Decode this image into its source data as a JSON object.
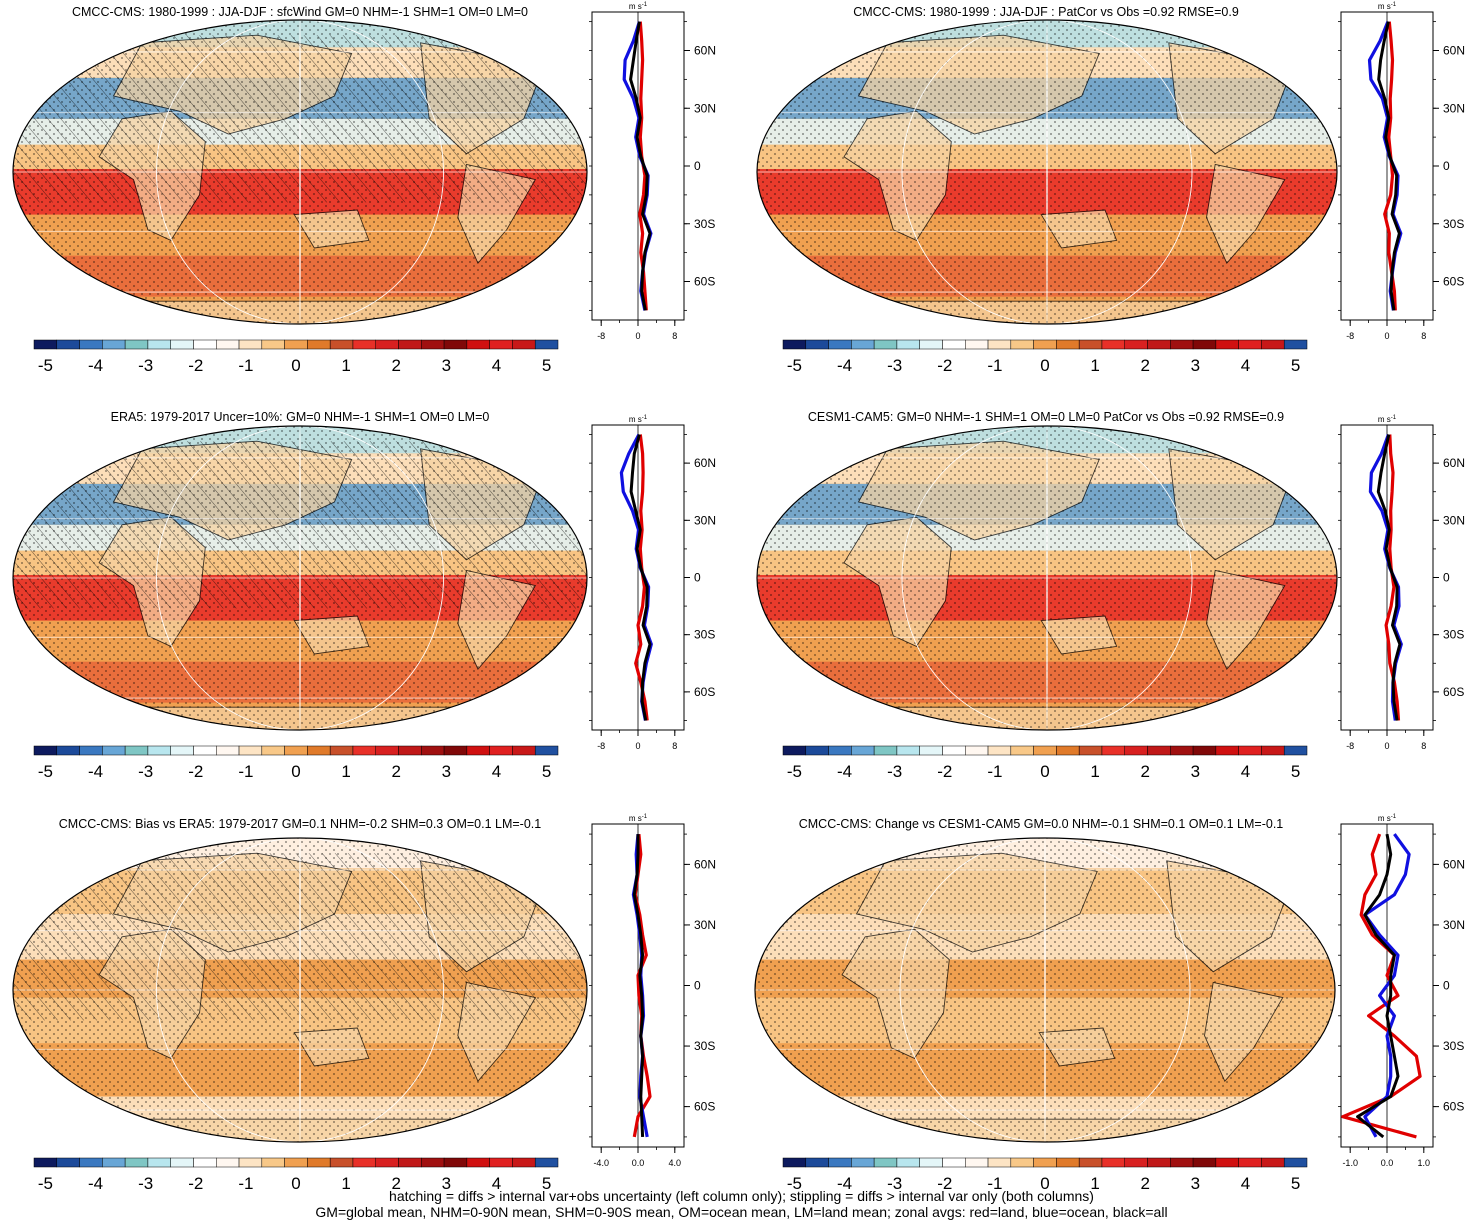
{
  "colors": {
    "scale": [
      "#0d1a5e",
      "#1c4a9a",
      "#3a78c0",
      "#68a6d6",
      "#7fc6c4",
      "#b8e6ee",
      "#e4f6f8",
      "#ffffff",
      "#fff7f0",
      "#fde4c4",
      "#f8c888",
      "#f0a050",
      "#e07a2a",
      "#c8502a",
      "#e83028",
      "#d82020",
      "#c01818",
      "#a01010",
      "#800808",
      "#d01010",
      "#e02020",
      "#c81818",
      "#2050a0"
    ],
    "zonal_land": "#e00000",
    "zonal_ocean": "#1010e0",
    "zonal_all": "#000000",
    "ocean_base": "#f0a050",
    "land_base": "#f6d2a2"
  },
  "colorbar": {
    "labels": [
      "-5",
      "-4",
      "-3",
      "-2",
      "-1",
      "0",
      "1",
      "2",
      "3",
      "4",
      "5"
    ]
  },
  "panels": [
    {
      "id": "p1",
      "title": "CMCC-CMS: 1980-1999 : JJA-DJF : sfcWind GM=0 NHM=-1 SHM=1 OM=0 LM=0",
      "lat_labels": [
        "60N",
        "30N",
        "0",
        "30S",
        "60S"
      ],
      "zonal_units": "m s",
      "zonal_units_exp": "-1",
      "zonal_xticks": [
        "-8",
        "0",
        "8"
      ],
      "zonal_xlim": [
        -10,
        10
      ],
      "hatched": true,
      "style": "bands"
    },
    {
      "id": "p2",
      "title": "CMCC-CMS: 1980-1999 : JJA-DJF : PatCor vs Obs =0.92 RMSE=0.9",
      "lat_labels": [
        "60N",
        "30N",
        "0",
        "30S",
        "60S"
      ],
      "zonal_units": "m s",
      "zonal_units_exp": "-1",
      "zonal_xticks": [
        "-8",
        "0",
        "8"
      ],
      "zonal_xlim": [
        -10,
        10
      ],
      "hatched": false,
      "style": "bands"
    },
    {
      "id": "p3",
      "title": "ERA5: 1979-2017 Uncer=10%: GM=0 NHM=-1 SHM=1 OM=0 LM=0",
      "lat_labels": [
        "60N",
        "30N",
        "0",
        "30S",
        "60S"
      ],
      "zonal_units": "m s",
      "zonal_units_exp": "-1",
      "zonal_xticks": [
        "-8",
        "0",
        "8"
      ],
      "zonal_xlim": [
        -10,
        10
      ],
      "hatched": true,
      "style": "bands"
    },
    {
      "id": "p4",
      "title": "CESM1-CAM5: GM=0 NHM=-1 SHM=1 OM=0 LM=0 PatCor vs Obs =0.92 RMSE=0.9",
      "lat_labels": [
        "60N",
        "30N",
        "0",
        "30S",
        "60S"
      ],
      "zonal_units": "m s",
      "zonal_units_exp": "-1",
      "zonal_xticks": [
        "-8",
        "0",
        "8"
      ],
      "zonal_xlim": [
        -10,
        10
      ],
      "hatched": false,
      "style": "bands"
    },
    {
      "id": "p5",
      "title": "CMCC-CMS: Bias vs ERA5: 1979-2017 GM=0.1 NHM=-0.2 SHM=0.3 OM=0.1 LM=-0.1",
      "lat_labels": [
        "60N",
        "30N",
        "0",
        "30S",
        "60S"
      ],
      "zonal_units": "m s",
      "zonal_units_exp": "-1",
      "zonal_xticks": [
        "-4.0",
        "0.0",
        "4.0"
      ],
      "zonal_xlim": [
        -5,
        5
      ],
      "hatched": true,
      "style": "bias"
    },
    {
      "id": "p6",
      "title": "CMCC-CMS: Change vs CESM1-CAM5 GM=0.0 NHM=-0.1 SHM=0.1 OM=0.1 LM=-0.1",
      "lat_labels": [
        "60N",
        "30N",
        "0",
        "30S",
        "60S"
      ],
      "zonal_units": "m s",
      "zonal_units_exp": "-1",
      "zonal_xticks": [
        "-1.0",
        "0.0",
        "1.0"
      ],
      "zonal_xlim": [
        -1.25,
        1.25
      ],
      "hatched": false,
      "style": "bias"
    }
  ],
  "footer": {
    "line1": "hatching = diffs > internal var+obs uncertainty (left column only); stippling = diffs > internal var only (both columns)",
    "line2": "GM=global mean, NHM=0-90N mean, SHM=0-90S mean, OM=ocean mean, LM=land mean; zonal avgs: red=land, blue=ocean, black=all"
  },
  "chart_data": [
    {
      "type": "line",
      "panel": "p1",
      "title": "CMCC-CMS: 1980-1999 : JJA-DJF : sfcWind GM=0 NHM=-1 SHM=1 OM=0 LM=0",
      "ylabel": "m s-1",
      "ylim": [
        -80,
        80
      ],
      "y": [
        75,
        65,
        55,
        45,
        35,
        25,
        15,
        5,
        -5,
        -15,
        -25,
        -35,
        -45,
        -55,
        -65,
        -75
      ],
      "series": [
        {
          "name": "red=land",
          "values": [
            0.5,
            0.8,
            1.0,
            0.8,
            0.6,
            0.8,
            0.5,
            0.8,
            1.5,
            1.2,
            0.4,
            1.0,
            0.6,
            1.2,
            1.5,
            1.8
          ]
        },
        {
          "name": "blue=ocean",
          "values": [
            0.3,
            -1.0,
            -2.8,
            -3.0,
            -1.0,
            0.2,
            -0.5,
            0.4,
            2.2,
            2.0,
            1.2,
            2.8,
            1.6,
            1.0,
            0.6,
            1.5
          ]
        },
        {
          "name": "black=all",
          "values": [
            0.3,
            -0.4,
            -1.0,
            -1.6,
            -0.4,
            0.5,
            -0.2,
            0.6,
            2.0,
            1.8,
            1.0,
            2.6,
            1.5,
            1.0,
            0.8,
            1.6
          ]
        }
      ]
    },
    {
      "type": "line",
      "panel": "p2",
      "title": "CMCC-CMS: 1980-1999 : JJA-DJF : PatCor vs Obs =0.92 RMSE=0.9",
      "ylabel": "m s-1",
      "ylim": [
        -80,
        80
      ],
      "y": [
        75,
        65,
        55,
        45,
        35,
        25,
        15,
        5,
        -5,
        -15,
        -25,
        -35,
        -45,
        -55,
        -65,
        -75
      ],
      "series": [
        {
          "name": "red=land",
          "values": [
            0.5,
            0.9,
            1.2,
            1.0,
            0.7,
            0.8,
            0.4,
            0.8,
            1.2,
            0.8,
            -0.5,
            0.5,
            0.4,
            1.0,
            1.6,
            1.8
          ]
        },
        {
          "name": "blue=ocean",
          "values": [
            0.2,
            -1.5,
            -3.8,
            -3.5,
            -1.0,
            0.1,
            -0.6,
            0.5,
            2.4,
            2.2,
            1.3,
            3.0,
            1.8,
            1.2,
            0.7,
            1.4
          ]
        },
        {
          "name": "black=all",
          "values": [
            0.3,
            -0.6,
            -1.4,
            -1.8,
            -0.5,
            0.4,
            -0.3,
            0.6,
            2.1,
            1.9,
            1.1,
            2.7,
            1.6,
            1.1,
            0.9,
            1.5
          ]
        }
      ]
    },
    {
      "type": "line",
      "panel": "p3",
      "title": "ERA5: 1979-2017 Uncer=10%: GM=0 NHM=-1 SHM=1 OM=0 LM=0",
      "ylabel": "m s-1",
      "ylim": [
        -80,
        80
      ],
      "y": [
        75,
        65,
        55,
        45,
        35,
        25,
        15,
        5,
        -5,
        -15,
        -25,
        -35,
        -45,
        -55,
        -65,
        -75
      ],
      "series": [
        {
          "name": "red=land",
          "values": [
            0.5,
            1.0,
            1.1,
            1.0,
            0.6,
            0.9,
            0.5,
            0.8,
            1.4,
            1.0,
            0.0,
            0.6,
            -0.5,
            0.6,
            1.5,
            2.0
          ]
        },
        {
          "name": "blue=ocean",
          "values": [
            0.2,
            -2.0,
            -3.6,
            -3.2,
            -1.2,
            0.1,
            -0.4,
            0.5,
            2.3,
            2.1,
            1.4,
            2.9,
            1.8,
            1.1,
            0.8,
            1.6
          ]
        },
        {
          "name": "black=all",
          "values": [
            0.3,
            -0.8,
            -1.2,
            -1.5,
            -0.5,
            0.5,
            -0.2,
            0.6,
            2.0,
            1.9,
            1.1,
            2.6,
            1.5,
            1.0,
            0.9,
            1.7
          ]
        }
      ]
    },
    {
      "type": "line",
      "panel": "p4",
      "title": "CESM1-CAM5: GM=0 NHM=-1 SHM=1 OM=0 LM=0 PatCor vs Obs =0.92 RMSE=0.9",
      "ylabel": "m s-1",
      "ylim": [
        -80,
        80
      ],
      "y": [
        75,
        65,
        55,
        45,
        35,
        25,
        15,
        5,
        -5,
        -15,
        -25,
        -35,
        -45,
        -55,
        -65,
        -75
      ],
      "series": [
        {
          "name": "red=land",
          "values": [
            0.6,
            0.8,
            1.3,
            1.1,
            0.8,
            0.9,
            0.6,
            0.9,
            1.5,
            0.9,
            -0.2,
            0.4,
            0.6,
            1.6,
            2.2,
            2.5
          ]
        },
        {
          "name": "blue=ocean",
          "values": [
            0.3,
            -1.2,
            -3.4,
            -3.6,
            -1.1,
            0.2,
            -0.5,
            0.6,
            2.5,
            2.6,
            1.5,
            3.1,
            1.9,
            1.3,
            1.2,
            1.8
          ]
        },
        {
          "name": "black=all",
          "values": [
            0.4,
            -0.5,
            -1.3,
            -1.9,
            -0.4,
            0.5,
            -0.2,
            0.7,
            2.2,
            2.1,
            1.2,
            2.8,
            1.7,
            1.3,
            1.5,
            2.2
          ]
        }
      ]
    },
    {
      "type": "line",
      "panel": "p5",
      "title": "CMCC-CMS: Bias vs ERA5: 1979-2017 GM=0.1 NHM=-0.2 SHM=0.3 OM=0.1 LM=-0.1",
      "ylabel": "m s-1",
      "ylim": [
        -80,
        80
      ],
      "y": [
        75,
        65,
        55,
        45,
        35,
        25,
        15,
        5,
        -5,
        -15,
        -25,
        -35,
        -45,
        -55,
        -65,
        -75
      ],
      "series": [
        {
          "name": "red=land",
          "values": [
            0.1,
            0.3,
            0.0,
            -0.3,
            0.2,
            0.5,
            0.9,
            0.0,
            0.1,
            0.4,
            0.3,
            0.6,
            1.0,
            1.3,
            0.0,
            -0.4
          ]
        },
        {
          "name": "blue=ocean",
          "values": [
            0.0,
            -0.2,
            -0.1,
            -0.5,
            -0.1,
            0.2,
            0.4,
            0.3,
            0.5,
            0.6,
            0.3,
            0.5,
            0.3,
            0.2,
            0.6,
            1.0
          ]
        },
        {
          "name": "black=all",
          "values": [
            0.0,
            0.0,
            -0.1,
            -0.4,
            0.0,
            0.3,
            0.5,
            0.2,
            0.4,
            0.5,
            0.3,
            0.5,
            0.4,
            0.3,
            0.4,
            0.5
          ]
        }
      ]
    },
    {
      "type": "line",
      "panel": "p6",
      "title": "CMCC-CMS: Change vs CESM1-CAM5 GM=0.0 NHM=-0.1 SHM=0.1 OM=0.1 LM=-0.1",
      "ylabel": "m s-1",
      "ylim": [
        -80,
        80
      ],
      "y": [
        75,
        65,
        55,
        45,
        35,
        25,
        15,
        5,
        -5,
        -15,
        -25,
        -35,
        -45,
        -55,
        -65,
        -75
      ],
      "series": [
        {
          "name": "red=land",
          "values": [
            -0.2,
            -0.4,
            -0.3,
            -0.6,
            -0.7,
            -0.4,
            0.2,
            0.0,
            0.3,
            -0.5,
            0.2,
            0.8,
            0.9,
            0.1,
            -1.2,
            0.8
          ]
        },
        {
          "name": "blue=ocean",
          "values": [
            0.2,
            0.6,
            0.5,
            0.2,
            -0.6,
            -0.2,
            0.3,
            0.2,
            -0.2,
            0.2,
            0.0,
            0.1,
            0.1,
            0.0,
            -0.6,
            -0.3
          ]
        },
        {
          "name": "black=all",
          "values": [
            0.0,
            0.1,
            0.0,
            -0.2,
            -0.6,
            -0.3,
            0.2,
            0.1,
            0.1,
            0.0,
            0.1,
            0.2,
            0.3,
            0.1,
            -0.8,
            -0.1
          ]
        }
      ]
    }
  ]
}
